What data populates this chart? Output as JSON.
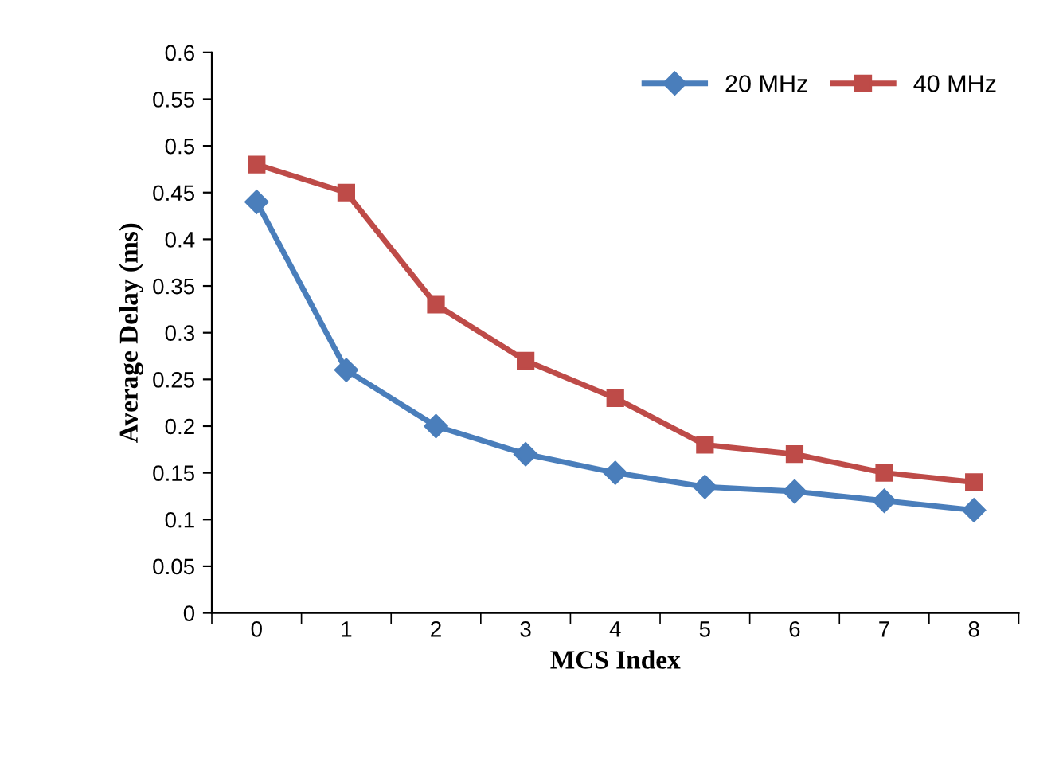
{
  "chart_data": {
    "type": "line",
    "xlabel": "MCS Index",
    "ylabel": "Average Delay (ms)",
    "categories": [
      "0",
      "1",
      "2",
      "3",
      "4",
      "5",
      "6",
      "7",
      "8"
    ],
    "series": [
      {
        "name": "20 MHz",
        "color": "#4a7ebb",
        "marker": "diamond",
        "values": [
          0.44,
          0.26,
          0.2,
          0.17,
          0.15,
          0.135,
          0.13,
          0.12,
          0.11
        ]
      },
      {
        "name": "40 MHz",
        "color": "#be4b48",
        "marker": "square",
        "values": [
          0.48,
          0.45,
          0.33,
          0.27,
          0.23,
          0.18,
          0.17,
          0.15,
          0.14
        ]
      }
    ],
    "ylim": [
      0,
      0.6
    ],
    "yticks": [
      0,
      0.05,
      0.1,
      0.15,
      0.2,
      0.25,
      0.3,
      0.35,
      0.4,
      0.45,
      0.5,
      0.55,
      0.6
    ],
    "grid": false,
    "legend": "top right",
    "line_style": "solid"
  }
}
